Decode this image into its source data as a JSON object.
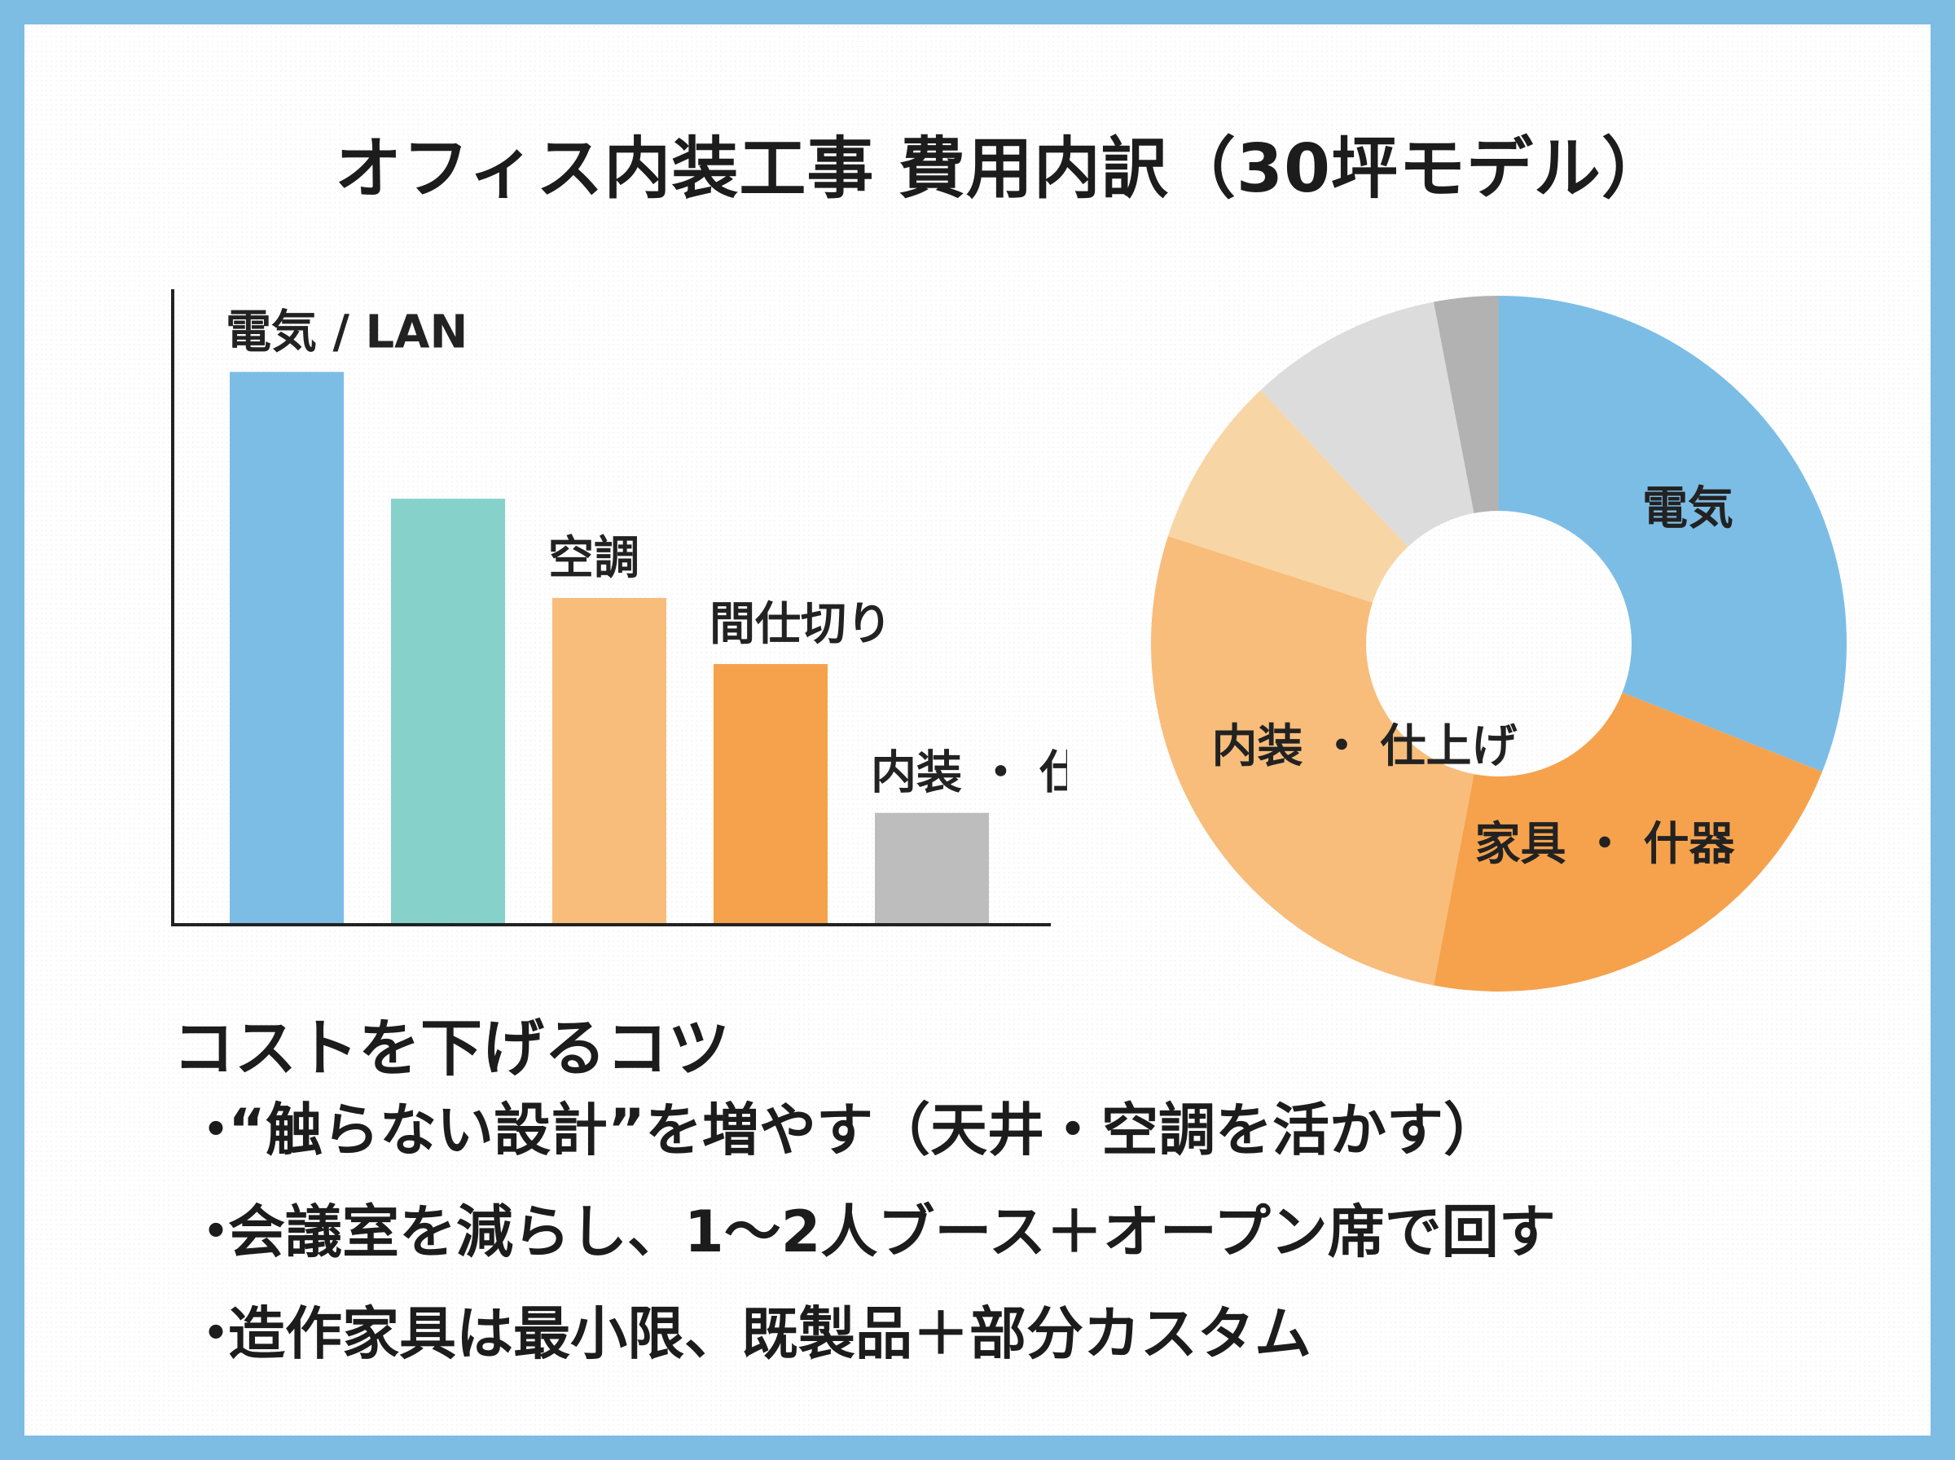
{
  "title": "オフィス内装工事 費用内訳（30坪モデル）",
  "colors": {
    "blue": "#7cbde6",
    "teal": "#86d2cb",
    "light_orange": "#f8bd7b",
    "orange": "#f6a24c",
    "gray": "#bdbdbd",
    "pale_orange": "#f8d5a4",
    "light_gray": "#dcdcdc",
    "dark_gray": "#b2b2b2",
    "axis": "#222222"
  },
  "chart_data": [
    {
      "type": "bar",
      "title": "",
      "categories": [
        "電気 / LAN",
        "",
        "空調",
        "間仕切り",
        "内装・仕上げ"
      ],
      "labels": [
        "電気 / LAN",
        "",
        "空調",
        "間仕切り",
        "内装 ・ 仕上げ"
      ],
      "values": [
        100,
        77,
        59,
        47,
        20
      ],
      "colors": [
        "#7cbde6",
        "#86d2cb",
        "#f8bd7b",
        "#f6a24c",
        "#bdbdbd"
      ],
      "ylim": [
        0,
        115
      ],
      "xlabel": "",
      "ylabel": "",
      "grid": false
    },
    {
      "type": "pie",
      "donut": true,
      "slices": [
        {
          "label": "電気",
          "value": 31,
          "color": "#7cbde6"
        },
        {
          "label": "家具・什器",
          "value": 22,
          "color": "#f6a24c"
        },
        {
          "label": "内装・仕上げ",
          "value": 27,
          "color": "#f8bd7b"
        },
        {
          "label": "",
          "value": 8,
          "color": "#f8d5a4"
        },
        {
          "label": "",
          "value": 9,
          "color": "#dcdcdc"
        },
        {
          "label": "",
          "value": 3,
          "color": "#b2b2b2"
        }
      ],
      "display_labels": [
        "電気",
        "家具 ・ 什器",
        "内装 ・ 仕上げ"
      ],
      "start": "top",
      "direction": "clockwise"
    }
  ],
  "tips": {
    "heading": "コストを下げるコツ",
    "bullet": "・",
    "items": [
      "“触らない設計”を増やす（天井・空調を活かす）",
      "会議室を減らし、1〜2人ブース＋オープン席で回す",
      "造作家具は最小限、既製品＋部分カスタム"
    ]
  }
}
